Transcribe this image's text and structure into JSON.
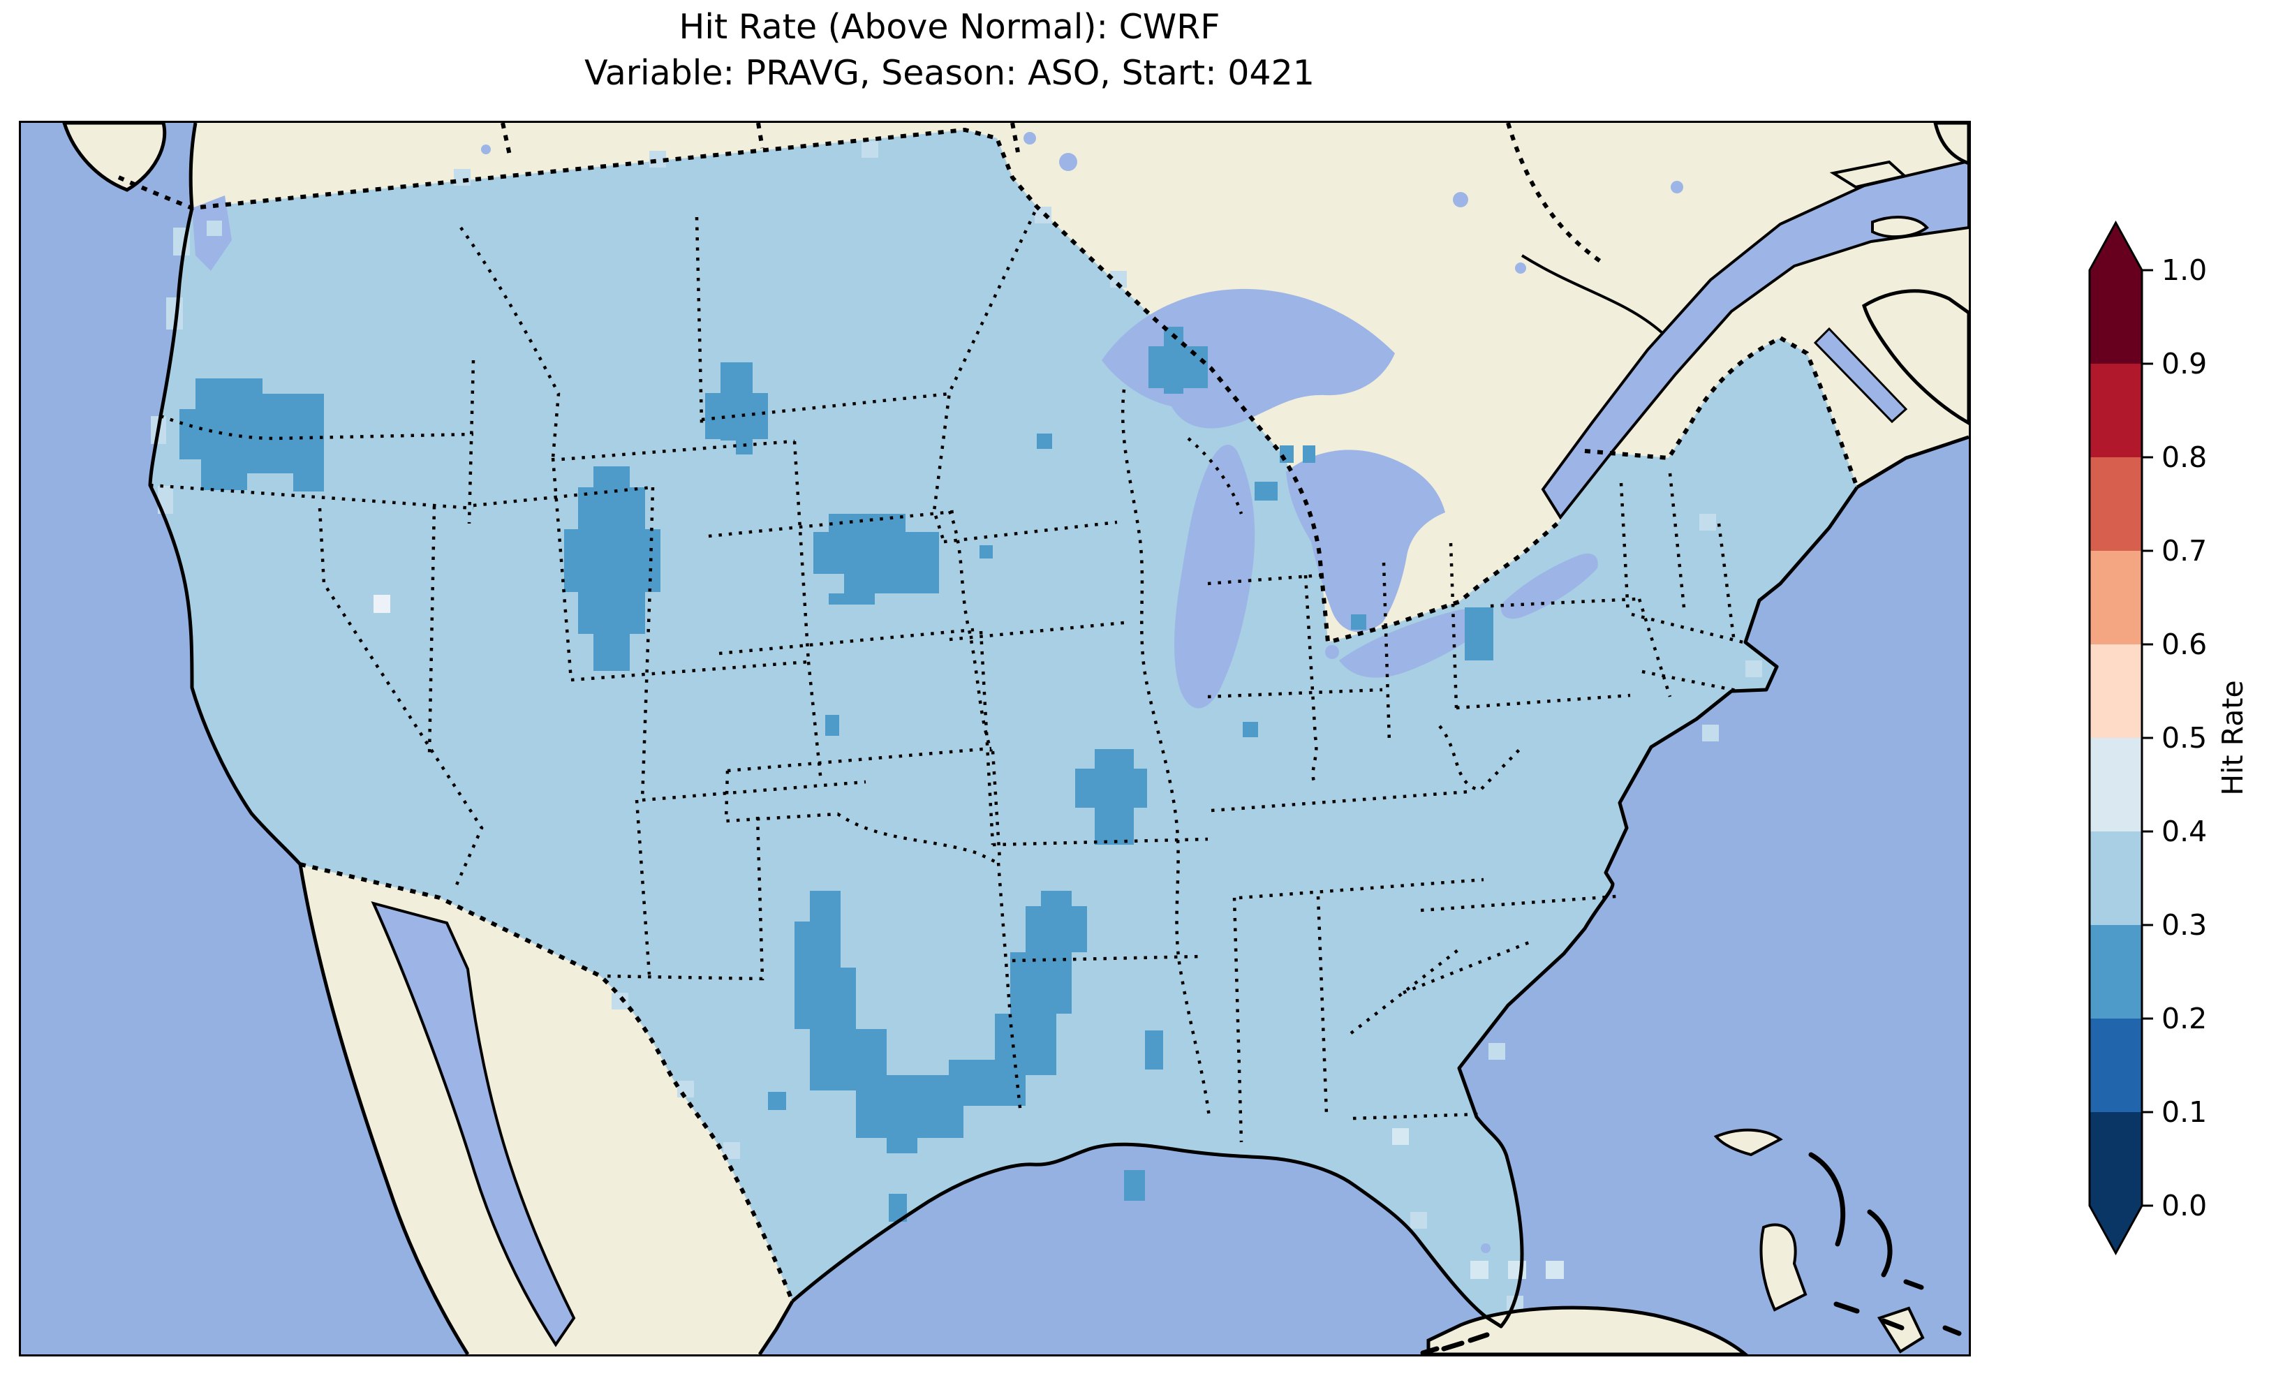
{
  "title": {
    "line1": "Hit Rate (Above Normal): CWRF",
    "line2": "Variable: PRAVG, Season: ASO, Start: 0421"
  },
  "colorbar": {
    "label": "Hit Rate",
    "ticks": [
      "1.0",
      "0.9",
      "0.8",
      "0.7",
      "0.6",
      "0.5",
      "0.4",
      "0.3",
      "0.2",
      "0.1",
      "0.0"
    ],
    "segment_colors_top_to_bottom": [
      "#67001f",
      "#b2182b",
      "#d6604d",
      "#f4a582",
      "#fddbc7",
      "#d9e8f1",
      "#a8cfe3",
      "#4e9ac9",
      "#2166ac",
      "#0a3666"
    ],
    "over_arrow_color": "#67001f",
    "under_arrow_color": "#0a3666"
  },
  "map": {
    "ocean_color": "#94b1e1",
    "foreign_land_color": "#f1efdb",
    "lake_color": "#9db5e6",
    "base_bin": "0.3-0.4",
    "base_color": "#a8cfe3",
    "cell_groups": [
      {
        "bin": "0.2-0.3",
        "color": "#4e9ac9",
        "rects": [
          [
            250,
            366,
            96,
            44
          ],
          [
            227,
            410,
            142,
            72
          ],
          [
            258,
            482,
            66,
            44
          ],
          [
            346,
            388,
            88,
            44
          ],
          [
            324,
            432,
            110,
            70
          ],
          [
            390,
            502,
            44,
            26
          ],
          [
            820,
            492,
            52,
            30
          ],
          [
            798,
            522,
            96,
            60
          ],
          [
            778,
            582,
            138,
            90
          ],
          [
            798,
            672,
            96,
            60
          ],
          [
            820,
            732,
            52,
            53
          ],
          [
            1002,
            343,
            46,
            44
          ],
          [
            980,
            387,
            90,
            66
          ],
          [
            1002,
            431,
            46,
            24
          ],
          [
            1024,
            453,
            24,
            22
          ],
          [
            1157,
            560,
            110,
            26
          ],
          [
            1135,
            586,
            180,
            60
          ],
          [
            1179,
            646,
            136,
            28
          ],
          [
            1157,
            674,
            66,
            16
          ],
          [
            1637,
            292,
            28,
            96
          ],
          [
            1615,
            320,
            85,
            60
          ],
          [
            1455,
            445,
            22,
            22
          ],
          [
            1803,
            462,
            20,
            25
          ],
          [
            1836,
            462,
            18,
            25
          ],
          [
            1767,
            514,
            33,
            27
          ],
          [
            2068,
            694,
            41,
            26
          ],
          [
            2068,
            720,
            41,
            50
          ],
          [
            2088,
            744,
            21,
            26
          ],
          [
            1373,
            605,
            19,
            19
          ],
          [
            1152,
            848,
            20,
            30
          ],
          [
            1750,
            858,
            22,
            22
          ],
          [
            1905,
            704,
            22,
            22
          ],
          [
            1538,
            897,
            56,
            28
          ],
          [
            1510,
            925,
            103,
            56
          ],
          [
            1538,
            981,
            56,
            53
          ],
          [
            1130,
            1100,
            44,
            44
          ],
          [
            1108,
            1144,
            66,
            66
          ],
          [
            1108,
            1210,
            88,
            88
          ],
          [
            1130,
            1298,
            110,
            88
          ],
          [
            1196,
            1364,
            154,
            90
          ],
          [
            1329,
            1342,
            110,
            66
          ],
          [
            1395,
            1276,
            88,
            88
          ],
          [
            1417,
            1188,
            88,
            88
          ],
          [
            1439,
            1122,
            88,
            66
          ],
          [
            1461,
            1100,
            44,
            44
          ],
          [
            1240,
            1454,
            44,
            22
          ],
          [
            1580,
            1500,
            30,
            44
          ],
          [
            1610,
            1300,
            26,
            56
          ],
          [
            1243,
            1534,
            26,
            40
          ],
          [
            1070,
            1388,
            26,
            26
          ]
        ]
      },
      {
        "bin": "0.4-0.5",
        "color": "#d6e8f2",
        "rects": [
          [
            2076,
            1630,
            26,
            26
          ],
          [
            2130,
            1630,
            26,
            26
          ],
          [
            2184,
            1630,
            26,
            26
          ],
          [
            1964,
            1440,
            24,
            24
          ]
        ]
      },
      {
        "bin": "0.4-0.5 (light)",
        "color": "#ecf2f7",
        "rects": [
          [
            505,
            676,
            24,
            26
          ]
        ]
      },
      {
        "bin": "border-partial",
        "color": "#c3dded",
        "rects": [
          [
            218,
            150,
            24,
            40
          ],
          [
            208,
            250,
            24,
            46
          ],
          [
            186,
            420,
            22,
            40
          ],
          [
            196,
            520,
            22,
            40
          ],
          [
            620,
            66,
            24,
            24
          ],
          [
            900,
            40,
            24,
            24
          ],
          [
            1204,
            26,
            24,
            24
          ],
          [
            1452,
            120,
            24,
            24
          ],
          [
            1560,
            212,
            24,
            24
          ],
          [
            2404,
            560,
            24,
            24
          ],
          [
            2470,
            770,
            24,
            24
          ],
          [
            2408,
            862,
            24,
            24
          ],
          [
            846,
            1246,
            24,
            24
          ],
          [
            940,
            1372,
            24,
            24
          ],
          [
            1006,
            1460,
            24,
            24
          ],
          [
            2128,
            1680,
            24,
            24
          ],
          [
            1990,
            1560,
            24,
            24
          ],
          [
            2102,
            1318,
            24,
            24
          ],
          [
            266,
            140,
            22,
            22
          ]
        ]
      }
    ]
  },
  "chart_data": {
    "type": "heatmap",
    "title": "Hit Rate (Above Normal): CWRF",
    "subtitle": "Variable: PRAVG, Season: ASO, Start: 0421",
    "model": "CWRF",
    "metric": "Hit Rate (Above Normal)",
    "variable": "PRAVG",
    "season": "ASO",
    "start": "0421",
    "region": "Contiguous United States (CONUS) with surrounding Canada, Mexico, Gulf of Mexico, Caribbean",
    "colorbar_label": "Hit Rate",
    "colorbar_ticks": [
      0.0,
      0.1,
      0.2,
      0.3,
      0.4,
      0.5,
      0.6,
      0.7,
      0.8,
      0.9,
      1.0
    ],
    "colorbar_extend": "both",
    "bins": [
      {
        "range": [
          0.0,
          0.1
        ],
        "color": "#0a3666"
      },
      {
        "range": [
          0.1,
          0.2
        ],
        "color": "#2166ac"
      },
      {
        "range": [
          0.2,
          0.3
        ],
        "color": "#4e9ac9"
      },
      {
        "range": [
          0.3,
          0.4
        ],
        "color": "#a8cfe3"
      },
      {
        "range": [
          0.4,
          0.5
        ],
        "color": "#d9e8f1"
      },
      {
        "range": [
          0.5,
          0.6
        ],
        "color": "#fddbc7"
      },
      {
        "range": [
          0.6,
          0.7
        ],
        "color": "#f4a582"
      },
      {
        "range": [
          0.7,
          0.8
        ],
        "color": "#d6604d"
      },
      {
        "range": [
          0.8,
          0.9
        ],
        "color": "#b2182b"
      },
      {
        "range": [
          0.9,
          1.0
        ],
        "color": "#67001f"
      }
    ],
    "dominant_bin": [
      0.3,
      0.4
    ],
    "lower_bin_regions_02_03": [
      "northeast Oregon",
      "central Wyoming",
      "northern North Dakota",
      "central South Dakota (Missouri River area)",
      "Duluth / western Lake Superior shore",
      "northern Michigan cells",
      "Lake Ontario shore New York",
      "southeast Missouri bootheel",
      "central Texas to Oklahoma to western Arkansas U-shaped arc",
      "Mississippi coast cells",
      "south Texas coast cell",
      "single cells in Minnesota, Iowa, Kansas, Indiana, Ohio"
    ],
    "higher_bin_cells_04_05": [
      "northwest Utah single cell",
      "Gulf cells southwest of Florida",
      "Florida big bend cell"
    ],
    "legend_position": "right vertical colorbar",
    "grid": false
  }
}
